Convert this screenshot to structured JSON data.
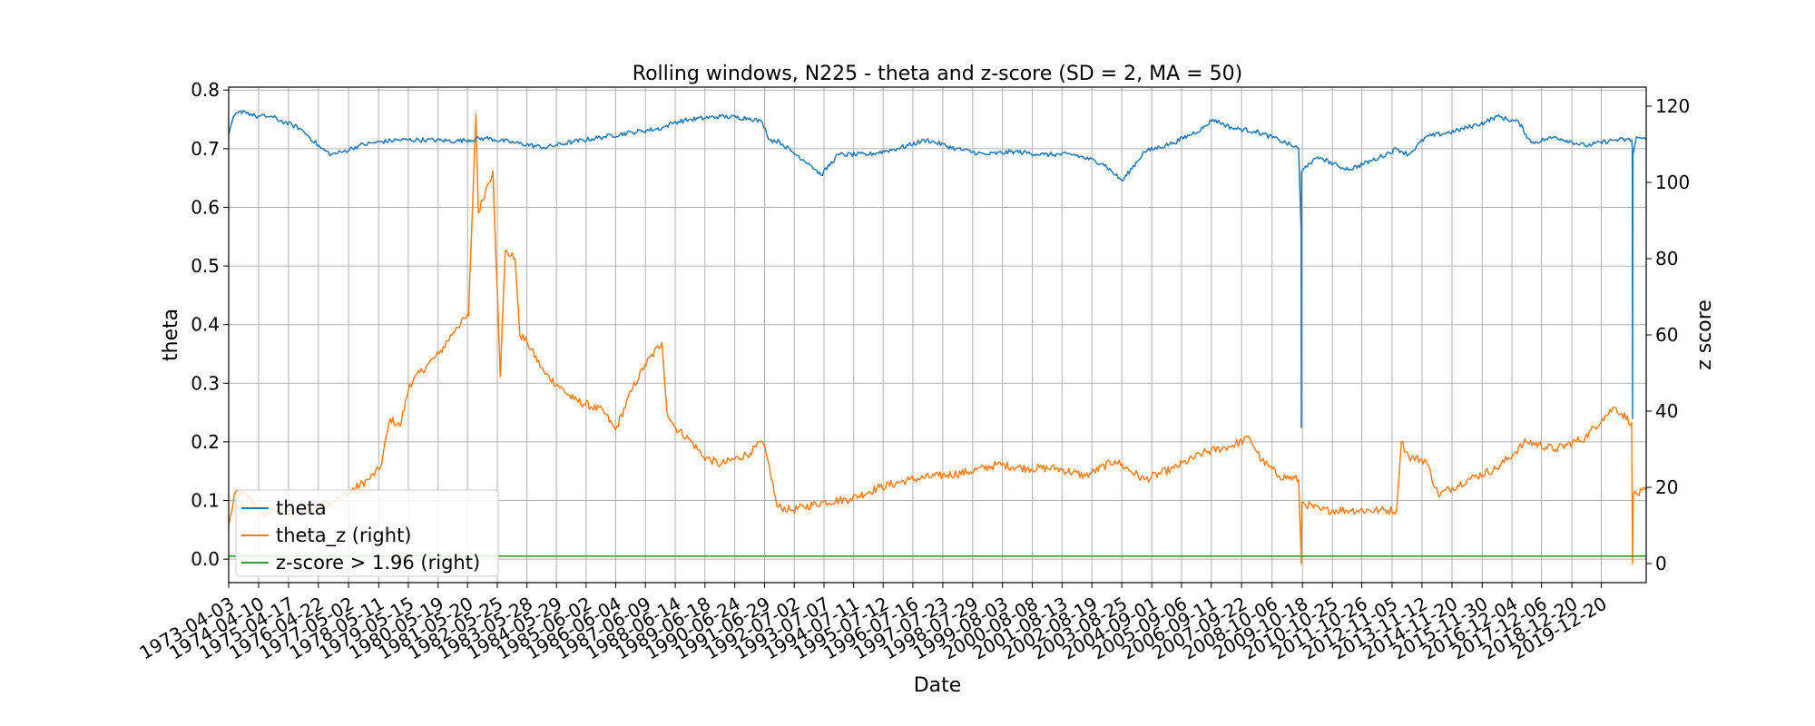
{
  "chart_data": {
    "type": "line",
    "title": "Rolling windows, N225 - theta and z-score (SD = 2, MA = 50)",
    "xlabel": "Date",
    "ylabel": "theta",
    "ylabel_right": "z score",
    "xlim": [
      "1973-04-03",
      "2021-06-30"
    ],
    "ylim": [
      -0.04,
      0.805
    ],
    "ylim_right": [
      -5,
      125
    ],
    "yticks": [
      0.0,
      0.1,
      0.2,
      0.3,
      0.4,
      0.5,
      0.6,
      0.7,
      0.8
    ],
    "yticks_right": [
      0,
      20,
      40,
      60,
      80,
      100,
      120
    ],
    "xtick_labels": [
      "1973-04-03",
      "1974-04-10",
      "1975-04-17",
      "1976-04-22",
      "1977-05-02",
      "1978-05-11",
      "1979-05-15",
      "1980-05-19",
      "1981-05-20",
      "1982-05-25",
      "1983-05-28",
      "1984-05-29",
      "1985-06-02",
      "1986-06-04",
      "1987-06-09",
      "1988-06-14",
      "1989-06-18",
      "1990-06-24",
      "1991-06-29",
      "1992-07-02",
      "1993-07-07",
      "1994-07-11",
      "1995-07-12",
      "1996-07-16",
      "1997-07-23",
      "1998-07-29",
      "1999-08-03",
      "2000-08-08",
      "2001-08-13",
      "2002-08-19",
      "2003-08-25",
      "2004-09-01",
      "2005-09-06",
      "2006-09-11",
      "2007-09-22",
      "2008-10-06",
      "2009-10-18",
      "2010-10-25",
      "2011-10-26",
      "2012-11-05",
      "2013-11-12",
      "2014-11-20",
      "2015-11-30",
      "2016-12-04",
      "2017-12-06",
      "2018-12-20",
      "2019-12-20"
    ],
    "grid": true,
    "legend_position": "lower-left",
    "series": [
      {
        "name": "theta",
        "axis": "left",
        "color": "#1f77b4",
        "points": [
          [
            "1973-04-03",
            0.725
          ],
          [
            "1973-06-01",
            0.755
          ],
          [
            "1973-10-01",
            0.765
          ],
          [
            "1974-03-01",
            0.755
          ],
          [
            "1974-09-01",
            0.755
          ],
          [
            "1975-03-01",
            0.745
          ],
          [
            "1975-09-01",
            0.735
          ],
          [
            "1976-01-01",
            0.72
          ],
          [
            "1976-06-01",
            0.7
          ],
          [
            "1976-10-01",
            0.69
          ],
          [
            "1977-03-01",
            0.695
          ],
          [
            "1977-09-01",
            0.705
          ],
          [
            "1978-03-01",
            0.71
          ],
          [
            "1979-01-01",
            0.715
          ],
          [
            "1980-01-01",
            0.715
          ],
          [
            "1981-01-01",
            0.713
          ],
          [
            "1982-01-01",
            0.718
          ],
          [
            "1983-01-01",
            0.71
          ],
          [
            "1984-01-01",
            0.702
          ],
          [
            "1985-01-01",
            0.712
          ],
          [
            "1986-01-01",
            0.72
          ],
          [
            "1987-01-01",
            0.728
          ],
          [
            "1988-01-01",
            0.735
          ],
          [
            "1988-06-01",
            0.745
          ],
          [
            "1989-01-01",
            0.75
          ],
          [
            "1990-01-01",
            0.755
          ],
          [
            "1991-01-01",
            0.752
          ],
          [
            "1991-06-01",
            0.745
          ],
          [
            "1991-09-01",
            0.715
          ],
          [
            "1992-01-01",
            0.712
          ],
          [
            "1992-06-01",
            0.695
          ],
          [
            "1993-01-01",
            0.675
          ],
          [
            "1993-06-01",
            0.655
          ],
          [
            "1994-01-01",
            0.69
          ],
          [
            "1995-01-01",
            0.69
          ],
          [
            "1996-01-01",
            0.7
          ],
          [
            "1997-01-01",
            0.715
          ],
          [
            "1998-01-01",
            0.7
          ],
          [
            "1999-01-01",
            0.69
          ],
          [
            "2000-01-01",
            0.695
          ],
          [
            "2001-01-01",
            0.69
          ],
          [
            "2002-01-01",
            0.69
          ],
          [
            "2003-01-01",
            0.675
          ],
          [
            "2003-09-01",
            0.645
          ],
          [
            "2004-06-01",
            0.695
          ],
          [
            "2005-06-01",
            0.71
          ],
          [
            "2006-06-01",
            0.735
          ],
          [
            "2006-10-01",
            0.75
          ],
          [
            "2007-06-01",
            0.735
          ],
          [
            "2008-03-01",
            0.73
          ],
          [
            "2009-01-01",
            0.715
          ],
          [
            "2009-09-01",
            0.7
          ],
          [
            "2009-10-02",
            0.56
          ],
          [
            "2009-10-04",
            0.225
          ],
          [
            "2009-10-07",
            0.66
          ],
          [
            "2010-01-01",
            0.675
          ],
          [
            "2010-06-01",
            0.685
          ],
          [
            "2011-01-01",
            0.67
          ],
          [
            "2011-06-01",
            0.665
          ],
          [
            "2012-06-01",
            0.685
          ],
          [
            "2013-01-01",
            0.7
          ],
          [
            "2013-06-01",
            0.69
          ],
          [
            "2014-01-01",
            0.72
          ],
          [
            "2015-01-01",
            0.73
          ],
          [
            "2016-01-01",
            0.745
          ],
          [
            "2016-06-01",
            0.755
          ],
          [
            "2017-03-01",
            0.745
          ],
          [
            "2017-08-01",
            0.71
          ],
          [
            "2018-06-01",
            0.72
          ],
          [
            "2019-06-01",
            0.705
          ],
          [
            "2020-06-01",
            0.715
          ],
          [
            "2021-01-01",
            0.715
          ],
          [
            "2021-01-08",
            0.7
          ],
          [
            "2021-01-12",
            0.24
          ],
          [
            "2021-01-16",
            0.69
          ],
          [
            "2021-03-01",
            0.72
          ],
          [
            "2021-06-30",
            0.715
          ]
        ]
      },
      {
        "name": "theta_z (right)",
        "axis": "right",
        "color": "#ff7f0e",
        "points": [
          [
            "1973-04-03",
            10
          ],
          [
            "1973-07-01",
            19
          ],
          [
            "1974-01-01",
            17
          ],
          [
            "1974-06-01",
            13
          ],
          [
            "1975-01-01",
            14
          ],
          [
            "1975-06-01",
            12
          ],
          [
            "1976-01-01",
            14
          ],
          [
            "1977-01-01",
            17
          ],
          [
            "1978-01-01",
            22
          ],
          [
            "1978-06-01",
            25
          ],
          [
            "1978-10-01",
            38
          ],
          [
            "1979-02-01",
            36
          ],
          [
            "1979-06-01",
            47
          ],
          [
            "1980-01-01",
            52
          ],
          [
            "1980-06-01",
            55
          ],
          [
            "1981-01-01",
            62
          ],
          [
            "1981-06-01",
            65
          ],
          [
            "1981-09-01",
            118
          ],
          [
            "1981-10-01",
            92
          ],
          [
            "1982-01-01",
            98
          ],
          [
            "1982-04-01",
            103
          ],
          [
            "1982-07-01",
            49
          ],
          [
            "1982-09-01",
            82
          ],
          [
            "1983-01-01",
            80
          ],
          [
            "1983-03-01",
            60
          ],
          [
            "1983-06-01",
            58
          ],
          [
            "1984-01-01",
            50
          ],
          [
            "1985-01-01",
            43
          ],
          [
            "1986-01-01",
            40
          ],
          [
            "1986-06-01",
            35
          ],
          [
            "1987-01-01",
            46
          ],
          [
            "1987-06-01",
            52
          ],
          [
            "1988-01-01",
            58
          ],
          [
            "1988-03-01",
            40
          ],
          [
            "1988-06-01",
            36
          ],
          [
            "1989-01-01",
            32
          ],
          [
            "1989-06-01",
            28
          ],
          [
            "1990-01-01",
            26
          ],
          [
            "1991-01-01",
            29
          ],
          [
            "1991-06-01",
            32
          ],
          [
            "1991-09-01",
            25
          ],
          [
            "1991-12-01",
            15
          ],
          [
            "1992-06-01",
            14
          ],
          [
            "1993-06-01",
            16
          ],
          [
            "1994-06-01",
            17
          ],
          [
            "1995-06-01",
            20
          ],
          [
            "1996-06-01",
            22
          ],
          [
            "1997-06-01",
            23
          ],
          [
            "1998-06-01",
            24
          ],
          [
            "1999-06-01",
            26
          ],
          [
            "2000-06-01",
            25
          ],
          [
            "2001-06-01",
            25
          ],
          [
            "2002-06-01",
            23
          ],
          [
            "2003-06-01",
            27
          ],
          [
            "2004-06-01",
            22
          ],
          [
            "2005-06-01",
            25
          ],
          [
            "2006-06-01",
            29
          ],
          [
            "2007-06-01",
            31
          ],
          [
            "2008-01-01",
            33
          ],
          [
            "2008-06-01",
            27
          ],
          [
            "2009-01-01",
            23
          ],
          [
            "2009-09-01",
            22
          ],
          [
            "2009-10-04",
            0
          ],
          [
            "2009-10-10",
            16
          ],
          [
            "2010-06-01",
            14
          ],
          [
            "2011-06-01",
            14
          ],
          [
            "2012-06-01",
            14
          ],
          [
            "2013-01-01",
            14
          ],
          [
            "2013-03-01",
            32
          ],
          [
            "2013-06-01",
            28
          ],
          [
            "2014-01-01",
            27
          ],
          [
            "2014-06-01",
            18
          ],
          [
            "2015-06-01",
            22
          ],
          [
            "2016-06-01",
            25
          ],
          [
            "2017-01-01",
            29
          ],
          [
            "2017-06-01",
            32
          ],
          [
            "2018-06-01",
            30
          ],
          [
            "2019-06-01",
            33
          ],
          [
            "2020-01-01",
            38
          ],
          [
            "2020-06-01",
            41
          ],
          [
            "2021-01-01",
            37
          ],
          [
            "2021-01-12",
            0
          ],
          [
            "2021-01-20",
            18
          ],
          [
            "2021-06-30",
            19
          ]
        ]
      },
      {
        "name": "z-score > 1.96 (right)",
        "axis": "right",
        "color": "#2ca02c",
        "points": [
          [
            "1973-04-03",
            1.96
          ],
          [
            "2021-06-30",
            1.96
          ]
        ]
      }
    ]
  }
}
